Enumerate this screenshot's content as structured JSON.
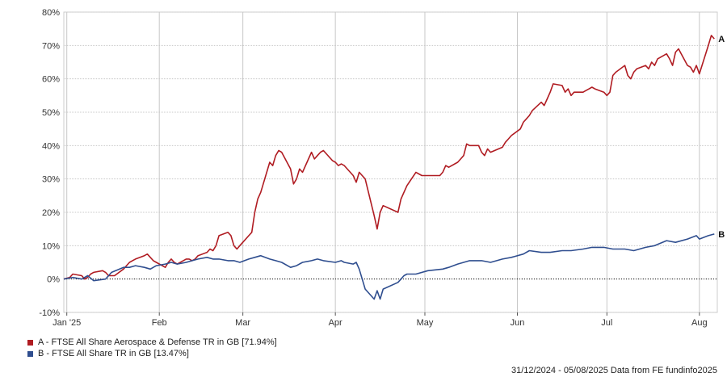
{
  "chart_data": {
    "type": "line",
    "ylim": [
      -10,
      80
    ],
    "y_ticks": [
      -10,
      0,
      10,
      20,
      30,
      40,
      50,
      60,
      70,
      80
    ],
    "y_tick_labels": [
      "-10%",
      "0%",
      "10%",
      "20%",
      "30%",
      "40%",
      "50%",
      "60%",
      "70%",
      "80%"
    ],
    "x_range": [
      "2024-12-31",
      "2025-08-05"
    ],
    "x_ticks": [
      {
        "date": "2025-01-01",
        "label": "Jan '25"
      },
      {
        "date": "2025-02-01",
        "label": "Feb"
      },
      {
        "date": "2025-03-01",
        "label": "Mar"
      },
      {
        "date": "2025-04-01",
        "label": "Apr"
      },
      {
        "date": "2025-05-01",
        "label": "May"
      },
      {
        "date": "2025-06-01",
        "label": "Jun"
      },
      {
        "date": "2025-07-01",
        "label": "Jul"
      },
      {
        "date": "2025-08-01",
        "label": "Aug"
      }
    ],
    "grid": true,
    "legend_position": "bottom-left",
    "series": [
      {
        "name": "A - FTSE All Share Aerospace & Defense TR in GB [71.94%]",
        "end_label": "A",
        "color": "#b01c22",
        "points": [
          [
            "2024-12-31",
            0
          ],
          [
            "2025-01-02",
            0.5
          ],
          [
            "2025-01-03",
            1.5
          ],
          [
            "2025-01-06",
            1
          ],
          [
            "2025-01-07",
            0
          ],
          [
            "2025-01-08",
            0.5
          ],
          [
            "2025-01-09",
            1.5
          ],
          [
            "2025-01-10",
            2
          ],
          [
            "2025-01-13",
            2.5
          ],
          [
            "2025-01-14",
            2
          ],
          [
            "2025-01-15",
            1
          ],
          [
            "2025-01-16",
            1
          ],
          [
            "2025-01-17",
            1
          ],
          [
            "2025-01-20",
            3
          ],
          [
            "2025-01-21",
            4
          ],
          [
            "2025-01-22",
            5
          ],
          [
            "2025-01-23",
            5.5
          ],
          [
            "2025-01-24",
            6
          ],
          [
            "2025-01-27",
            7
          ],
          [
            "2025-01-28",
            7.5
          ],
          [
            "2025-01-29",
            6.5
          ],
          [
            "2025-01-30",
            5.5
          ],
          [
            "2025-01-31",
            5
          ],
          [
            "2025-02-03",
            3.5
          ],
          [
            "2025-02-04",
            5
          ],
          [
            "2025-02-05",
            6
          ],
          [
            "2025-02-06",
            5
          ],
          [
            "2025-02-07",
            4.5
          ],
          [
            "2025-02-10",
            6
          ],
          [
            "2025-02-11",
            6
          ],
          [
            "2025-02-12",
            5.5
          ],
          [
            "2025-02-13",
            6
          ],
          [
            "2025-02-14",
            7
          ],
          [
            "2025-02-17",
            8
          ],
          [
            "2025-02-18",
            9
          ],
          [
            "2025-02-19",
            8.5
          ],
          [
            "2025-02-20",
            10
          ],
          [
            "2025-02-21",
            13
          ],
          [
            "2025-02-24",
            14
          ],
          [
            "2025-02-25",
            13
          ],
          [
            "2025-02-26",
            10
          ],
          [
            "2025-02-27",
            9
          ],
          [
            "2025-02-28",
            10
          ],
          [
            "2025-03-03",
            13
          ],
          [
            "2025-03-04",
            14
          ],
          [
            "2025-03-05",
            20
          ],
          [
            "2025-03-06",
            24
          ],
          [
            "2025-03-07",
            26
          ],
          [
            "2025-03-10",
            35
          ],
          [
            "2025-03-11",
            34
          ],
          [
            "2025-03-12",
            37
          ],
          [
            "2025-03-13",
            38.5
          ],
          [
            "2025-03-14",
            38
          ],
          [
            "2025-03-17",
            33
          ],
          [
            "2025-03-18",
            28.5
          ],
          [
            "2025-03-19",
            30
          ],
          [
            "2025-03-20",
            33
          ],
          [
            "2025-03-21",
            32
          ],
          [
            "2025-03-24",
            38
          ],
          [
            "2025-03-25",
            36
          ],
          [
            "2025-03-26",
            37
          ],
          [
            "2025-03-27",
            38
          ],
          [
            "2025-03-28",
            38.5
          ],
          [
            "2025-03-31",
            35.5
          ],
          [
            "2025-04-01",
            35
          ],
          [
            "2025-04-02",
            34
          ],
          [
            "2025-04-03",
            34.5
          ],
          [
            "2025-04-04",
            34
          ],
          [
            "2025-04-07",
            31
          ],
          [
            "2025-04-08",
            29
          ],
          [
            "2025-04-09",
            32
          ],
          [
            "2025-04-10",
            31
          ],
          [
            "2025-04-11",
            30
          ],
          [
            "2025-04-14",
            19
          ],
          [
            "2025-04-15",
            15
          ],
          [
            "2025-04-16",
            20
          ],
          [
            "2025-04-17",
            22
          ],
          [
            "2025-04-22",
            20
          ],
          [
            "2025-04-23",
            24
          ],
          [
            "2025-04-24",
            26
          ],
          [
            "2025-04-25",
            28
          ],
          [
            "2025-04-28",
            32
          ],
          [
            "2025-04-29",
            31.5
          ],
          [
            "2025-04-30",
            31
          ],
          [
            "2025-05-01",
            31
          ],
          [
            "2025-05-02",
            31
          ],
          [
            "2025-05-06",
            31
          ],
          [
            "2025-05-07",
            32
          ],
          [
            "2025-05-08",
            34
          ],
          [
            "2025-05-09",
            33.5
          ],
          [
            "2025-05-12",
            35
          ],
          [
            "2025-05-13",
            36
          ],
          [
            "2025-05-14",
            37
          ],
          [
            "2025-05-15",
            40.5
          ],
          [
            "2025-05-16",
            40
          ],
          [
            "2025-05-19",
            40
          ],
          [
            "2025-05-20",
            38
          ],
          [
            "2025-05-21",
            37
          ],
          [
            "2025-05-22",
            39
          ],
          [
            "2025-05-23",
            38
          ],
          [
            "2025-05-27",
            39.5
          ],
          [
            "2025-05-28",
            41
          ],
          [
            "2025-05-29",
            42
          ],
          [
            "2025-05-30",
            43
          ],
          [
            "2025-06-02",
            45
          ],
          [
            "2025-06-03",
            47
          ],
          [
            "2025-06-04",
            48
          ],
          [
            "2025-06-05",
            49
          ],
          [
            "2025-06-06",
            50.5
          ],
          [
            "2025-06-09",
            53
          ],
          [
            "2025-06-10",
            52
          ],
          [
            "2025-06-11",
            54
          ],
          [
            "2025-06-12",
            56
          ],
          [
            "2025-06-13",
            58.5
          ],
          [
            "2025-06-16",
            58
          ],
          [
            "2025-06-17",
            56
          ],
          [
            "2025-06-18",
            57
          ],
          [
            "2025-06-19",
            55
          ],
          [
            "2025-06-20",
            56
          ],
          [
            "2025-06-23",
            56
          ],
          [
            "2025-06-24",
            56.5
          ],
          [
            "2025-06-25",
            57
          ],
          [
            "2025-06-26",
            57.5
          ],
          [
            "2025-06-27",
            57
          ],
          [
            "2025-06-30",
            56
          ],
          [
            "2025-07-01",
            55
          ],
          [
            "2025-07-02",
            56
          ],
          [
            "2025-07-03",
            61
          ],
          [
            "2025-07-04",
            62
          ],
          [
            "2025-07-07",
            64
          ],
          [
            "2025-07-08",
            61
          ],
          [
            "2025-07-09",
            60
          ],
          [
            "2025-07-10",
            62
          ],
          [
            "2025-07-11",
            63
          ],
          [
            "2025-07-14",
            64
          ],
          [
            "2025-07-15",
            63
          ],
          [
            "2025-07-16",
            65
          ],
          [
            "2025-07-17",
            64
          ],
          [
            "2025-07-18",
            66
          ],
          [
            "2025-07-21",
            67.5
          ],
          [
            "2025-07-22",
            66
          ],
          [
            "2025-07-23",
            64
          ],
          [
            "2025-07-24",
            68
          ],
          [
            "2025-07-25",
            69
          ],
          [
            "2025-07-28",
            64
          ],
          [
            "2025-07-29",
            63.5
          ],
          [
            "2025-07-30",
            62
          ],
          [
            "2025-07-31",
            64
          ],
          [
            "2025-08-01",
            61.5
          ],
          [
            "2025-08-04",
            70
          ],
          [
            "2025-08-05",
            73
          ],
          [
            "2025-08-06",
            72
          ]
        ]
      },
      {
        "name": "B - FTSE All Share TR in GB [13.47%]",
        "end_label": "B",
        "color": "#2f4e8f",
        "points": [
          [
            "2024-12-31",
            0
          ],
          [
            "2025-01-03",
            0.5
          ],
          [
            "2025-01-06",
            0
          ],
          [
            "2025-01-08",
            1
          ],
          [
            "2025-01-10",
            -0.5
          ],
          [
            "2025-01-14",
            0
          ],
          [
            "2025-01-16",
            2
          ],
          [
            "2025-01-20",
            3.5
          ],
          [
            "2025-01-22",
            3.5
          ],
          [
            "2025-01-24",
            4
          ],
          [
            "2025-01-27",
            3.5
          ],
          [
            "2025-01-29",
            3
          ],
          [
            "2025-01-31",
            4
          ],
          [
            "2025-02-03",
            4.5
          ],
          [
            "2025-02-05",
            5
          ],
          [
            "2025-02-07",
            4.5
          ],
          [
            "2025-02-10",
            5
          ],
          [
            "2025-02-12",
            5.5
          ],
          [
            "2025-02-14",
            6
          ],
          [
            "2025-02-17",
            6.5
          ],
          [
            "2025-02-19",
            6
          ],
          [
            "2025-02-21",
            6
          ],
          [
            "2025-02-24",
            5.5
          ],
          [
            "2025-02-26",
            5.5
          ],
          [
            "2025-02-28",
            5
          ],
          [
            "2025-03-03",
            6
          ],
          [
            "2025-03-05",
            6.5
          ],
          [
            "2025-03-07",
            7
          ],
          [
            "2025-03-10",
            6
          ],
          [
            "2025-03-12",
            5.5
          ],
          [
            "2025-03-14",
            5
          ],
          [
            "2025-03-17",
            3.5
          ],
          [
            "2025-03-19",
            4
          ],
          [
            "2025-03-21",
            5
          ],
          [
            "2025-03-24",
            5.5
          ],
          [
            "2025-03-26",
            6
          ],
          [
            "2025-03-28",
            5.5
          ],
          [
            "2025-04-01",
            5
          ],
          [
            "2025-04-03",
            5.5
          ],
          [
            "2025-04-04",
            5
          ],
          [
            "2025-04-07",
            4.5
          ],
          [
            "2025-04-08",
            5
          ],
          [
            "2025-04-09",
            3
          ],
          [
            "2025-04-10",
            0
          ],
          [
            "2025-04-11",
            -3
          ],
          [
            "2025-04-14",
            -6
          ],
          [
            "2025-04-15",
            -3.5
          ],
          [
            "2025-04-16",
            -6
          ],
          [
            "2025-04-17",
            -3
          ],
          [
            "2025-04-22",
            -1
          ],
          [
            "2025-04-23",
            0
          ],
          [
            "2025-04-24",
            1
          ],
          [
            "2025-04-25",
            1.5
          ],
          [
            "2025-04-28",
            1.5
          ],
          [
            "2025-05-02",
            2.5
          ],
          [
            "2025-05-07",
            3
          ],
          [
            "2025-05-09",
            3.5
          ],
          [
            "2025-05-12",
            4.5
          ],
          [
            "2025-05-14",
            5
          ],
          [
            "2025-05-16",
            5.5
          ],
          [
            "2025-05-20",
            5.5
          ],
          [
            "2025-05-23",
            5
          ],
          [
            "2025-05-27",
            6
          ],
          [
            "2025-05-30",
            6.5
          ],
          [
            "2025-06-03",
            7.5
          ],
          [
            "2025-06-05",
            8.5
          ],
          [
            "2025-06-09",
            8
          ],
          [
            "2025-06-12",
            8
          ],
          [
            "2025-06-16",
            8.5
          ],
          [
            "2025-06-19",
            8.5
          ],
          [
            "2025-06-23",
            9
          ],
          [
            "2025-06-26",
            9.5
          ],
          [
            "2025-06-30",
            9.5
          ],
          [
            "2025-07-03",
            9
          ],
          [
            "2025-07-07",
            9
          ],
          [
            "2025-07-10",
            8.5
          ],
          [
            "2025-07-14",
            9.5
          ],
          [
            "2025-07-17",
            10
          ],
          [
            "2025-07-21",
            11.5
          ],
          [
            "2025-07-24",
            11
          ],
          [
            "2025-07-28",
            12
          ],
          [
            "2025-07-31",
            13
          ],
          [
            "2025-08-01",
            12
          ],
          [
            "2025-08-04",
            13
          ],
          [
            "2025-08-06",
            13.5
          ]
        ]
      }
    ]
  },
  "footer": {
    "text": "31/12/2024 - 05/08/2025 Data from FE fundinfo2025"
  }
}
